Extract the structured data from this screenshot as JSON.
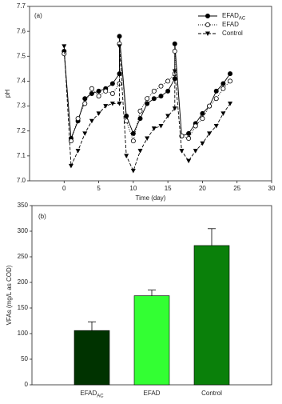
{
  "chart_data": [
    {
      "type": "line",
      "annotation": "(a)",
      "x_label": "Time (day)",
      "y_label": "pH",
      "x": [
        0,
        1,
        2,
        3,
        4,
        5,
        6,
        7,
        8,
        8,
        9,
        10,
        11,
        12,
        13,
        14,
        15,
        16,
        16,
        17,
        18,
        19,
        20,
        21,
        22,
        23,
        24
      ],
      "xlim": [
        -5,
        30
      ],
      "xticks": [
        0,
        5,
        10,
        15,
        20,
        25,
        30
      ],
      "ylim": [
        7.0,
        7.7
      ],
      "yticks": [
        {
          "value": 7.0,
          "label": "7.0"
        },
        7.1,
        7.2,
        7.3,
        7.4,
        7.5,
        7.6,
        7.7
      ],
      "legend": "upper right",
      "series": [
        {
          "name": "EFAD",
          "name_subscript": "AC",
          "color": "#000000",
          "marker": "filled-circle",
          "linestyle": "solid",
          "values": [
            7.52,
            7.17,
            7.24,
            7.33,
            7.35,
            7.36,
            7.37,
            7.39,
            7.43,
            7.58,
            7.26,
            7.19,
            7.25,
            7.31,
            7.33,
            7.34,
            7.36,
            7.41,
            7.55,
            7.18,
            7.19,
            7.23,
            7.27,
            7.3,
            7.36,
            7.39,
            7.43
          ]
        },
        {
          "name": "EFAD",
          "color": "#000000",
          "marker": "open-circle",
          "linestyle": "dotted",
          "values": [
            7.51,
            7.16,
            7.25,
            7.31,
            7.37,
            7.34,
            7.36,
            7.35,
            7.39,
            7.55,
            7.24,
            7.16,
            7.28,
            7.33,
            7.36,
            7.38,
            7.4,
            7.43,
            7.52,
            7.18,
            7.17,
            7.22,
            7.25,
            7.3,
            7.33,
            7.37,
            7.4
          ]
        },
        {
          "name": "Control",
          "color": "#000000",
          "marker": "down-triangle",
          "linestyle": "dashed",
          "values": [
            7.54,
            7.06,
            7.12,
            7.19,
            7.24,
            7.27,
            7.3,
            7.31,
            7.31,
            7.54,
            7.1,
            7.04,
            7.12,
            7.17,
            7.21,
            7.22,
            7.26,
            7.29,
            7.44,
            7.12,
            7.08,
            7.12,
            7.15,
            7.19,
            7.22,
            7.27,
            7.31
          ]
        }
      ]
    },
    {
      "type": "bar",
      "annotation": "(b)",
      "y_label": "VFAs (mg/L as COD)",
      "categories": [
        "EFAD",
        "EFAD",
        "Control"
      ],
      "category_subscripts": [
        "AC",
        null,
        null
      ],
      "values": [
        106,
        174,
        272
      ],
      "errors": [
        17,
        11,
        33
      ],
      "colors": [
        "#003300",
        "#33ff33",
        "#0a800a"
      ],
      "ylim": [
        0,
        350
      ],
      "yticks": [
        0,
        50,
        100,
        150,
        200,
        250,
        300,
        350
      ]
    }
  ]
}
